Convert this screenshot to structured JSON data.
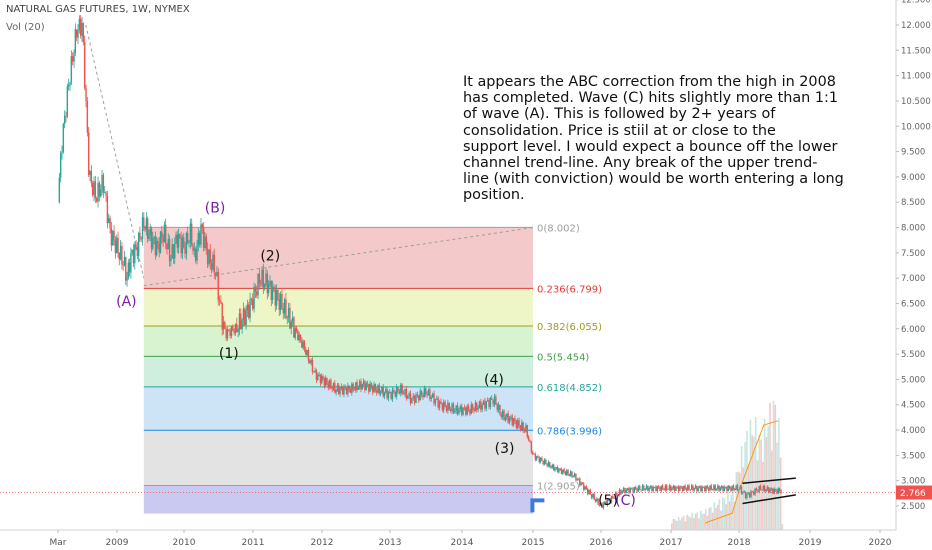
{
  "header": {
    "title": "NATURAL GAS FUTURES, 1W, NYMEX",
    "volume_label": "Vol (20)"
  },
  "annotation": "It appears the ABC correction from the high in 2008\nhas completed. Wave (C) hits slightly more than 1:1\nof wave (A). This is followed by 2+ years of\nconsolidation. Price is stiil at or close to the\nsupport level. I would expect a bounce off the lower\nchannel trend-line. Any break of the upper trend-\nline (with conviction) would be worth entering a long\nposition.",
  "colors": {
    "up": "#26a69a",
    "down": "#ef5350",
    "price_line": "#ef5350",
    "wave_purple": "#7b1fa2",
    "arrow": "#3d7bd6"
  },
  "chart_data": {
    "type": "candlestick",
    "title": "NATURAL GAS FUTURES, 1W, NYMEX",
    "x_tick_labels": [
      "Mar",
      "2009",
      "2010",
      "2011",
      "2012",
      "2013",
      "2014",
      "2015",
      "2016",
      "2017",
      "2018",
      "2019",
      "2020"
    ],
    "y_tick_labels": [
      "2.500",
      "3.000",
      "3.500",
      "4.000",
      "4.500",
      "5.000",
      "5.500",
      "6.000",
      "6.500",
      "7.000",
      "7.500",
      "8.000",
      "8.500",
      "9.000",
      "9.500",
      "10.000",
      "10.500",
      "11.000",
      "11.500",
      "12.000",
      "12.500"
    ],
    "ylim": [
      2.3,
      12.6
    ],
    "last_price": "2.766",
    "price_path": [
      [
        2008.15,
        8.5
      ],
      [
        2008.2,
        9.6
      ],
      [
        2008.3,
        10.8
      ],
      [
        2008.42,
        11.9
      ],
      [
        2008.5,
        12.0
      ],
      [
        2008.55,
        10.5
      ],
      [
        2008.6,
        9.0
      ],
      [
        2008.7,
        8.6
      ],
      [
        2008.8,
        8.9
      ],
      [
        2008.9,
        7.9
      ],
      [
        2009.0,
        7.6
      ],
      [
        2009.1,
        7.3
      ],
      [
        2009.15,
        7.0
      ],
      [
        2009.2,
        7.4
      ],
      [
        2009.3,
        7.6
      ],
      [
        2009.4,
        8.1
      ],
      [
        2009.5,
        7.8
      ],
      [
        2009.6,
        7.6
      ],
      [
        2009.7,
        7.9
      ],
      [
        2009.8,
        7.4
      ],
      [
        2009.9,
        7.8
      ],
      [
        2010.0,
        7.6
      ],
      [
        2010.1,
        7.9
      ],
      [
        2010.15,
        7.4
      ],
      [
        2010.25,
        8.0
      ],
      [
        2010.35,
        7.4
      ],
      [
        2010.45,
        7.2
      ],
      [
        2010.55,
        6.2
      ],
      [
        2010.6,
        5.9
      ],
      [
        2010.75,
        6.0
      ],
      [
        2010.9,
        6.3
      ],
      [
        2011.0,
        6.6
      ],
      [
        2011.1,
        7.0
      ],
      [
        2011.2,
        6.9
      ],
      [
        2011.3,
        6.7
      ],
      [
        2011.45,
        6.4
      ],
      [
        2011.6,
        6.0
      ],
      [
        2011.75,
        5.6
      ],
      [
        2011.9,
        5.1
      ],
      [
        2012.0,
        5.0
      ],
      [
        2012.2,
        4.8
      ],
      [
        2012.4,
        4.8
      ],
      [
        2012.6,
        4.9
      ],
      [
        2012.8,
        4.8
      ],
      [
        2013.0,
        4.7
      ],
      [
        2013.15,
        4.8
      ],
      [
        2013.3,
        4.6
      ],
      [
        2013.5,
        4.75
      ],
      [
        2013.7,
        4.5
      ],
      [
        2013.9,
        4.4
      ],
      [
        2014.1,
        4.4
      ],
      [
        2014.3,
        4.5
      ],
      [
        2014.45,
        4.6
      ],
      [
        2014.55,
        4.3
      ],
      [
        2014.7,
        4.2
      ],
      [
        2014.9,
        4.0
      ],
      [
        2015.0,
        3.5
      ],
      [
        2015.3,
        3.25
      ],
      [
        2015.6,
        3.1
      ],
      [
        2015.8,
        2.8
      ],
      [
        2016.0,
        2.5
      ],
      [
        2016.1,
        2.6
      ],
      [
        2016.3,
        2.8
      ],
      [
        2016.6,
        2.85
      ],
      [
        2017.0,
        2.85
      ],
      [
        2017.5,
        2.85
      ],
      [
        2018.0,
        2.85
      ],
      [
        2018.1,
        2.7
      ],
      [
        2018.3,
        2.85
      ],
      [
        2018.5,
        2.8
      ],
      [
        2018.6,
        2.8
      ]
    ],
    "volume": [
      [
        2017.0,
        0.08
      ],
      [
        2017.5,
        0.15
      ],
      [
        2017.9,
        0.3
      ],
      [
        2018.0,
        0.55
      ],
      [
        2018.1,
        0.75
      ],
      [
        2018.2,
        0.85
      ],
      [
        2018.3,
        0.7
      ],
      [
        2018.4,
        0.9
      ],
      [
        2018.5,
        1.0
      ],
      [
        2018.6,
        0.6
      ]
    ],
    "volume_ma": [
      [
        2017.5,
        0.05
      ],
      [
        2017.9,
        0.12
      ],
      [
        2018.0,
        0.28
      ],
      [
        2018.2,
        0.55
      ],
      [
        2018.35,
        0.75
      ],
      [
        2018.55,
        0.78
      ]
    ],
    "fibonacci": [
      {
        "ratio": "0",
        "price": 8.002,
        "label": "0(8.002)",
        "color": "#9e9e9e",
        "fill": "#f3c9c9"
      },
      {
        "ratio": "0.236",
        "price": 6.799,
        "label": "0.236(6.799)",
        "color": "#e53935",
        "fill": "#eef5c7"
      },
      {
        "ratio": "0.382",
        "price": 6.055,
        "label": "0.382(6.055)",
        "color": "#9e9d24",
        "fill": "#d8f3cf"
      },
      {
        "ratio": "0.5",
        "price": 5.454,
        "label": "0.5(5.454)",
        "color": "#43a047",
        "fill": "#cfeede"
      },
      {
        "ratio": "0.618",
        "price": 4.852,
        "label": "0.618(4.852)",
        "color": "#26a69a",
        "fill": "#cde4f6"
      },
      {
        "ratio": "0.786",
        "price": 3.996,
        "label": "0.786(3.996)",
        "color": "#1e88e5",
        "fill": "#e3e3e3"
      },
      {
        "ratio": "1",
        "price": 2.905,
        "label": "1(2.905)",
        "color": "#9e9e9e",
        "fill": "#c9c9f2"
      }
    ],
    "fib_x_range": [
      2009.4,
      2015.0
    ],
    "fib_bottom": 2.35,
    "wave_labels": [
      {
        "text": "(A)",
        "x": 2009.14,
        "y": 6.45,
        "color": "#7b1fa2"
      },
      {
        "text": "(B)",
        "x": 2010.45,
        "y": 8.3,
        "color": "#7b1fa2"
      },
      {
        "text": "(C)",
        "x": 2016.35,
        "y": 2.52,
        "color": "#7b1fa2"
      },
      {
        "text": "(1)",
        "x": 2010.65,
        "y": 5.42,
        "color": "#111111"
      },
      {
        "text": "(2)",
        "x": 2011.25,
        "y": 7.35,
        "color": "#111111"
      },
      {
        "text": "(3)",
        "x": 2014.6,
        "y": 3.55,
        "color": "#111111"
      },
      {
        "text": "(4)",
        "x": 2014.45,
        "y": 4.9,
        "color": "#111111"
      },
      {
        "text": "(5)",
        "x": 2016.1,
        "y": 2.52,
        "color": "#111111"
      }
    ],
    "trend_lines": [
      {
        "from": [
          2008.55,
          12.0
        ],
        "to": [
          2009.4,
          7.0
        ],
        "style": "dashed"
      },
      {
        "from": [
          2009.4,
          6.85
        ],
        "to": [
          2015.0,
          8.0
        ],
        "style": "dashed"
      },
      {
        "from": [
          2018.05,
          2.95
        ],
        "to": [
          2018.8,
          3.05
        ],
        "style": "solid"
      },
      {
        "from": [
          2018.05,
          2.55
        ],
        "to": [
          2018.8,
          2.72
        ],
        "style": "solid"
      }
    ],
    "arrow": {
      "x": 2015.05,
      "y": 2.65,
      "color": "#3d7bd6"
    },
    "legend": "none",
    "grid": false
  }
}
